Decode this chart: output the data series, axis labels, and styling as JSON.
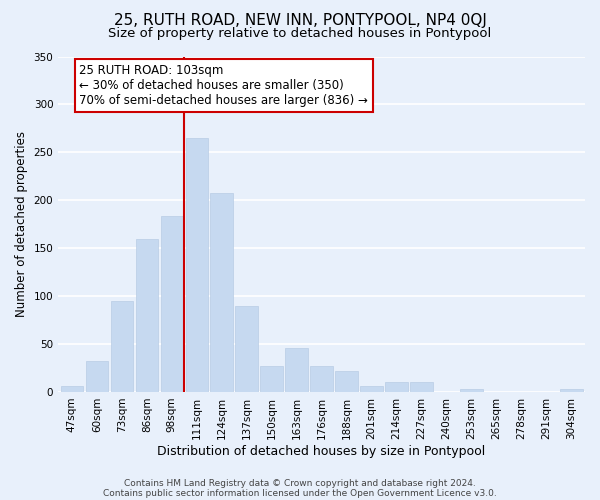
{
  "title": "25, RUTH ROAD, NEW INN, PONTYPOOL, NP4 0QJ",
  "subtitle": "Size of property relative to detached houses in Pontypool",
  "xlabel": "Distribution of detached houses by size in Pontypool",
  "ylabel": "Number of detached properties",
  "bar_labels": [
    "47sqm",
    "60sqm",
    "73sqm",
    "86sqm",
    "98sqm",
    "111sqm",
    "124sqm",
    "137sqm",
    "150sqm",
    "163sqm",
    "176sqm",
    "188sqm",
    "201sqm",
    "214sqm",
    "227sqm",
    "240sqm",
    "253sqm",
    "265sqm",
    "278sqm",
    "291sqm",
    "304sqm"
  ],
  "bar_values": [
    6,
    32,
    95,
    160,
    184,
    265,
    208,
    90,
    27,
    46,
    27,
    22,
    6,
    10,
    10,
    0,
    3,
    0,
    0,
    0,
    3
  ],
  "bar_color": "#c6d9f0",
  "bar_edge_color": "#b8cce4",
  "vline_x_index": 4.5,
  "annotation_title": "25 RUTH ROAD: 103sqm",
  "annotation_line1": "← 30% of detached houses are smaller (350)",
  "annotation_line2": "70% of semi-detached houses are larger (836) →",
  "annotation_box_color": "#ffffff",
  "annotation_box_edge_color": "#cc0000",
  "vline_color": "#cc0000",
  "ylim": [
    0,
    350
  ],
  "yticks": [
    0,
    50,
    100,
    150,
    200,
    250,
    300,
    350
  ],
  "footer1": "Contains HM Land Registry data © Crown copyright and database right 2024.",
  "footer2": "Contains public sector information licensed under the Open Government Licence v3.0.",
  "bg_color": "#e8f0fb",
  "plot_bg_color": "#e8f0fb",
  "grid_color": "#ffffff",
  "title_fontsize": 11,
  "subtitle_fontsize": 9.5,
  "xlabel_fontsize": 9,
  "ylabel_fontsize": 8.5,
  "tick_fontsize": 7.5,
  "annotation_fontsize": 8.5,
  "footer_fontsize": 6.5
}
